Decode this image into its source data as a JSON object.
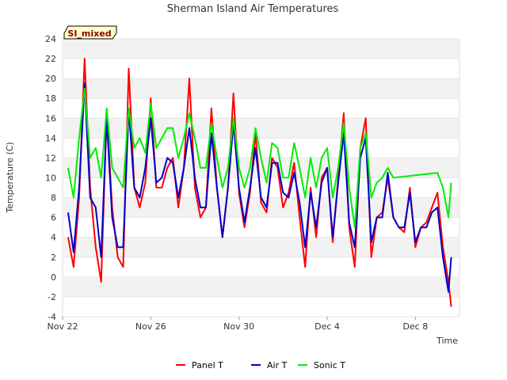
{
  "chart_data": {
    "type": "line",
    "title": "Sherman Island Air Temperatures",
    "xlabel": "Time",
    "ylabel": "Temperature (C)",
    "badge": "SI_mixed",
    "ylim": [
      -4,
      24
    ],
    "yticks": [
      -4,
      -2,
      0,
      2,
      4,
      6,
      8,
      10,
      12,
      14,
      16,
      18,
      20,
      22,
      24
    ],
    "xlim": [
      "2023-11-22",
      "2023-12-10"
    ],
    "xticks": [
      {
        "value": "2023-11-22",
        "label": "Nov 22"
      },
      {
        "value": "2023-11-26",
        "label": "Nov 26"
      },
      {
        "value": "2023-11-30",
        "label": "Nov 30"
      },
      {
        "value": "2023-12-04",
        "label": "Dec 4"
      },
      {
        "value": "2023-12-08",
        "label": "Dec 8"
      }
    ],
    "legend_position": "bottom-center",
    "grid": "horizontal-bands",
    "x": [
      "2023-11-22T06:00",
      "2023-11-22T12:00",
      "2023-11-22T18:00",
      "2023-11-23T00:00",
      "2023-11-23T06:00",
      "2023-11-23T12:00",
      "2023-11-23T18:00",
      "2023-11-24T00:00",
      "2023-11-24T06:00",
      "2023-11-24T12:00",
      "2023-11-24T18:00",
      "2023-11-25T00:00",
      "2023-11-25T06:00",
      "2023-11-25T12:00",
      "2023-11-25T18:00",
      "2023-11-26T00:00",
      "2023-11-26T06:00",
      "2023-11-26T12:00",
      "2023-11-26T18:00",
      "2023-11-27T00:00",
      "2023-11-27T06:00",
      "2023-11-27T12:00",
      "2023-11-27T18:00",
      "2023-11-28T00:00",
      "2023-11-28T06:00",
      "2023-11-28T12:00",
      "2023-11-28T18:00",
      "2023-11-29T00:00",
      "2023-11-29T06:00",
      "2023-11-29T12:00",
      "2023-11-29T18:00",
      "2023-11-30T00:00",
      "2023-11-30T06:00",
      "2023-11-30T12:00",
      "2023-11-30T18:00",
      "2023-12-01T00:00",
      "2023-12-01T06:00",
      "2023-12-01T12:00",
      "2023-12-01T18:00",
      "2023-12-02T00:00",
      "2023-12-02T06:00",
      "2023-12-02T12:00",
      "2023-12-02T18:00",
      "2023-12-03T00:00",
      "2023-12-03T06:00",
      "2023-12-03T12:00",
      "2023-12-03T18:00",
      "2023-12-04T00:00",
      "2023-12-04T06:00",
      "2023-12-04T12:00",
      "2023-12-04T18:00",
      "2023-12-05T00:00",
      "2023-12-05T06:00",
      "2023-12-05T12:00",
      "2023-12-05T18:00",
      "2023-12-06T00:00",
      "2023-12-06T06:00",
      "2023-12-06T12:00",
      "2023-12-06T18:00",
      "2023-12-07T00:00",
      "2023-12-07T06:00",
      "2023-12-07T12:00",
      "2023-12-07T18:00",
      "2023-12-08T00:00",
      "2023-12-08T06:00",
      "2023-12-08T12:00",
      "2023-12-08T18:00",
      "2023-12-09T00:00",
      "2023-12-09T06:00",
      "2023-12-09T12:00",
      "2023-12-09T15:00"
    ],
    "series": [
      {
        "name": "Panel T",
        "color": "#ff0000",
        "values": [
          4.0,
          1.0,
          8.0,
          22.0,
          9.0,
          3.0,
          -0.5,
          16.5,
          7.0,
          2.0,
          1.0,
          21.0,
          9.0,
          7.0,
          9.5,
          18.0,
          9.0,
          9.0,
          11.0,
          12.0,
          7.0,
          11.0,
          20.0,
          9.0,
          6.0,
          7.0,
          17.0,
          9.0,
          4.0,
          9.0,
          18.5,
          8.5,
          5.0,
          8.5,
          14.5,
          7.5,
          6.5,
          12.0,
          11.0,
          7.0,
          8.5,
          11.5,
          6.0,
          1.0,
          9.0,
          4.0,
          10.0,
          11.0,
          3.5,
          10.0,
          16.5,
          5.0,
          1.0,
          13.0,
          16.0,
          2.0,
          6.0,
          6.5,
          10.0,
          6.0,
          5.0,
          4.5,
          9.0,
          3.0,
          5.0,
          5.5,
          7.0,
          8.5,
          3.0,
          -0.5,
          -3.0
        ]
      },
      {
        "name": "Air T",
        "color": "#0000cc",
        "values": [
          6.5,
          2.5,
          9.0,
          19.5,
          8.0,
          7.0,
          2.0,
          16.0,
          6.0,
          3.0,
          3.0,
          17.0,
          9.0,
          8.0,
          11.0,
          16.0,
          9.5,
          10.0,
          12.0,
          11.5,
          8.0,
          11.0,
          15.0,
          10.0,
          7.0,
          7.0,
          14.5,
          9.0,
          4.0,
          9.0,
          15.5,
          9.0,
          5.5,
          9.0,
          13.0,
          8.0,
          7.0,
          11.5,
          11.5,
          8.5,
          8.0,
          10.5,
          7.5,
          3.0,
          8.5,
          5.0,
          9.5,
          11.0,
          4.0,
          9.5,
          14.5,
          5.5,
          3.0,
          12.0,
          14.0,
          3.5,
          6.0,
          6.0,
          10.5,
          6.0,
          5.0,
          5.0,
          8.5,
          3.5,
          5.0,
          5.0,
          6.5,
          7.0,
          2.0,
          -1.5,
          2.0
        ]
      },
      {
        "name": "Sonic T",
        "color": "#00ee00",
        "values": [
          11.0,
          8.0,
          14.0,
          19.0,
          12.0,
          13.0,
          10.0,
          17.0,
          11.0,
          10.0,
          9.0,
          17.0,
          13.0,
          14.0,
          12.5,
          17.5,
          13.0,
          14.0,
          15.0,
          15.0,
          12.0,
          14.0,
          16.5,
          14.0,
          11.0,
          11.0,
          15.5,
          12.0,
          9.0,
          11.0,
          16.0,
          11.0,
          9.0,
          11.0,
          15.0,
          12.0,
          9.5,
          13.5,
          13.0,
          10.0,
          10.0,
          13.5,
          11.0,
          8.0,
          12.0,
          9.0,
          12.0,
          13.0,
          8.0,
          11.0,
          15.5,
          9.0,
          5.0,
          13.0,
          14.5,
          8.0,
          9.5,
          10.0,
          11.0,
          10.0,
          null,
          null,
          null,
          null,
          null,
          null,
          null,
          10.5,
          9.0,
          6.0,
          9.5
        ]
      }
    ]
  }
}
